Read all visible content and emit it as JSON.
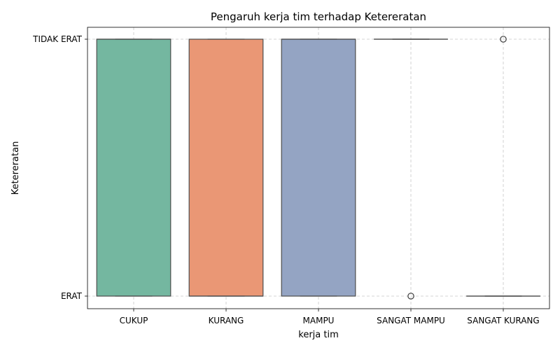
{
  "chart_data": {
    "type": "box",
    "title": "Pengaruh kerja tim terhadap Ketereratan",
    "xlabel": "kerja tim",
    "ylabel": "Ketereratan",
    "categories": [
      "CUKUP",
      "KURANG",
      "MAMPU",
      "SANGAT MAMPU",
      "SANGAT KURANG"
    ],
    "y_levels": [
      "ERAT",
      "TIDAK ERAT"
    ],
    "grid": true,
    "boxes": [
      {
        "category": "CUKUP",
        "q1": 0,
        "median": 1,
        "q3": 1,
        "whisker_low": 0,
        "whisker_high": 1,
        "outliers": [],
        "color": "#74b7a0"
      },
      {
        "category": "KURANG",
        "q1": 0,
        "median": 0,
        "q3": 1,
        "whisker_low": 0,
        "whisker_high": 1,
        "outliers": [],
        "color": "#ea9775"
      },
      {
        "category": "MAMPU",
        "q1": 0,
        "median": 1,
        "q3": 1,
        "whisker_low": 0,
        "whisker_high": 1,
        "outliers": [],
        "color": "#94a4c3"
      },
      {
        "category": "SANGAT MAMPU",
        "q1": 1,
        "median": 1,
        "q3": 1,
        "whisker_low": 1,
        "whisker_high": 1,
        "outliers": [
          0
        ],
        "color": "#d794bd"
      },
      {
        "category": "SANGAT KURANG",
        "q1": 0,
        "median": 0,
        "q3": 0,
        "whisker_low": 0,
        "whisker_high": 0,
        "outliers": [
          1
        ],
        "color": "#a6c985"
      }
    ]
  }
}
